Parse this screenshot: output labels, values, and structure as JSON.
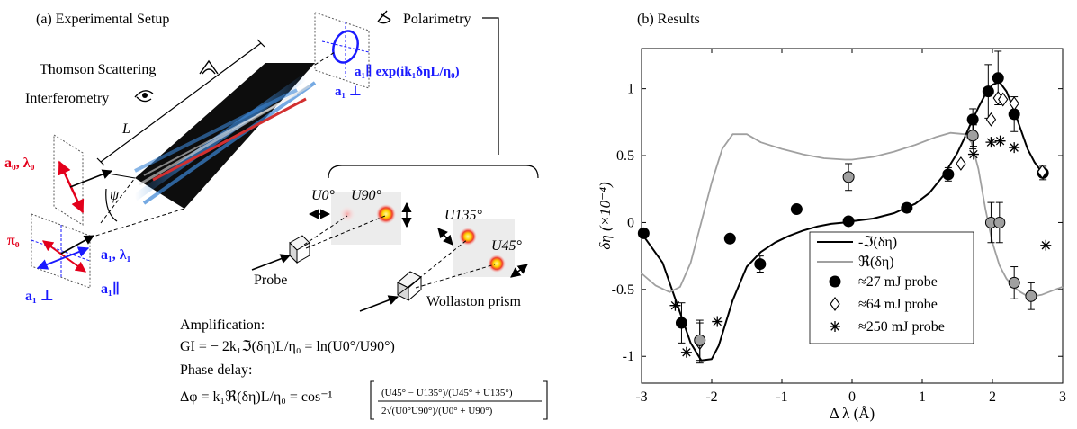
{
  "panel_a": {
    "caption": "(a) Experimental Setup",
    "thomson": "Thomson Scattering",
    "interferometry": "Interferometry",
    "polarimetry": "Polarimetry",
    "length_label": "L",
    "angle_label": "ψ",
    "pump_label": "a₀, λ₀",
    "pump_pol_label": "π₀",
    "seed_label": "a₁, λ₁",
    "seed_par_label": "a₁∥",
    "seed_perp_label": "a₁ ⊥",
    "out_par_label": "a₁∥ exp(ik₁δηL/η₀)",
    "out_perp_label": "a₁ ⊥",
    "u0": "U0°",
    "u90": "U90°",
    "u135": "U135°",
    "u45": "U45°",
    "probe": "Probe",
    "wollaston": "Wollaston prism",
    "amp_title": "Amplification:",
    "amp_eq": "GI = − 2k₁ℑ(δη)L/η₀ = ln(U0°/U90°)",
    "phase_title": "Phase delay:",
    "phase_eq_lhs": "Δφ = k₁ℜ(δη)L/η₀ = cos⁻¹",
    "phase_eq_num": "(U45° − U135°)/(U45° + U135°)",
    "phase_eq_den": "2√(U0°U90°)/(U0° + U90°)"
  },
  "chart_data": {
    "type": "line",
    "caption": "(b) Results",
    "xlabel": "Δ λ (Å)",
    "ylabel": "δη (×10⁻⁴)",
    "xlim": [
      -3,
      3
    ],
    "ylim": [
      -1.2,
      1.3
    ],
    "xticks": [
      -3,
      -2,
      -1,
      0,
      1,
      2,
      3
    ],
    "yticks": [
      -1,
      -0.5,
      0,
      0.5,
      1
    ],
    "legend_position": "center-right",
    "lines": [
      {
        "name": "-ℑ(δη)",
        "color": "#000000",
        "x": [
          -3.0,
          -2.7,
          -2.5,
          -2.3,
          -2.15,
          -2.0,
          -1.9,
          -1.7,
          -1.5,
          -1.3,
          -1.1,
          -0.9,
          -0.7,
          -0.5,
          -0.3,
          -0.1,
          0.0,
          0.3,
          0.6,
          0.9,
          1.1,
          1.3,
          1.5,
          1.6,
          1.7,
          1.8,
          1.9,
          2.0,
          2.1,
          2.2,
          2.3,
          2.4,
          2.5,
          2.6,
          2.7
        ],
        "y": [
          -0.08,
          -0.3,
          -0.6,
          -0.9,
          -1.03,
          -1.02,
          -0.92,
          -0.58,
          -0.33,
          -0.22,
          -0.15,
          -0.1,
          -0.06,
          -0.03,
          -0.01,
          0.0,
          0.01,
          0.03,
          0.07,
          0.14,
          0.22,
          0.35,
          0.52,
          0.63,
          0.75,
          0.86,
          0.96,
          1.03,
          1.05,
          0.98,
          0.85,
          0.7,
          0.55,
          0.45,
          0.38
        ]
      },
      {
        "name": "ℜ(δη)",
        "color": "#a0a0a0",
        "x": [
          -3.0,
          -2.8,
          -2.6,
          -2.45,
          -2.3,
          -2.15,
          -2.0,
          -1.85,
          -1.7,
          -1.5,
          -1.3,
          -1.0,
          -0.7,
          -0.4,
          -0.1,
          0.0,
          0.3,
          0.6,
          0.9,
          1.2,
          1.4,
          1.6,
          1.7,
          1.8,
          1.9,
          2.0,
          2.1,
          2.2,
          2.3,
          2.4,
          2.5,
          2.6,
          2.7,
          2.8,
          2.9,
          3.0
        ],
        "y": [
          -0.38,
          -0.47,
          -0.52,
          -0.48,
          -0.3,
          0.0,
          0.3,
          0.55,
          0.66,
          0.66,
          0.6,
          0.55,
          0.51,
          0.48,
          0.47,
          0.47,
          0.49,
          0.53,
          0.58,
          0.64,
          0.67,
          0.66,
          0.6,
          0.4,
          0.1,
          -0.15,
          -0.32,
          -0.42,
          -0.48,
          -0.52,
          -0.55,
          -0.55,
          -0.54,
          -0.52,
          -0.5,
          -0.48
        ]
      }
    ],
    "points": [
      {
        "name": "≈27 mJ probe",
        "marker": "circle",
        "fill": "#000000",
        "x": [
          -2.97,
          -2.43,
          -1.74,
          -1.31,
          -0.79,
          -0.05,
          0.78,
          1.37,
          1.72,
          1.94,
          2.08,
          2.31,
          2.72
        ],
        "y": [
          -0.08,
          -0.75,
          -0.12,
          -0.31,
          0.1,
          0.01,
          0.11,
          0.36,
          0.77,
          0.98,
          1.08,
          0.81,
          0.37
        ],
        "err": [
          0.0,
          0.15,
          0.0,
          0.06,
          0.0,
          0.0,
          0.0,
          0.05,
          0.08,
          0.2,
          0.2,
          0.13,
          0.05
        ]
      },
      {
        "name": "≈64 mJ probe",
        "marker": "diamond",
        "fill": "#ffffff",
        "x": [
          -2.17,
          1.55,
          1.73,
          1.98,
          2.08,
          2.15,
          2.31,
          2.71
        ],
        "y": [
          -0.9,
          0.44,
          0.65,
          0.77,
          0.93,
          0.92,
          0.89,
          0.38
        ],
        "err": [
          0.15,
          0.0,
          0.08,
          0.0,
          0.0,
          0.0,
          0.0,
          0.0
        ]
      },
      {
        "name": "≈250 mJ probe",
        "marker": "star",
        "fill": "#000000",
        "x": [
          -2.52,
          -2.36,
          -1.92,
          1.73,
          1.98,
          2.11,
          2.31,
          2.76
        ],
        "y": [
          -0.62,
          -0.97,
          -0.74,
          0.51,
          0.6,
          0.61,
          0.56,
          -0.17
        ]
      },
      {
        "name": "",
        "marker": "circle",
        "fill": "#a0a0a0",
        "x": [
          -2.17,
          -0.05,
          1.72,
          1.98,
          2.1,
          2.31,
          2.55
        ],
        "y": [
          -0.88,
          0.34,
          0.65,
          0.0,
          0.0,
          -0.45,
          -0.55
        ],
        "err": [
          0.15,
          0.1,
          0.1,
          0.15,
          0.15,
          0.12,
          0.1
        ]
      }
    ]
  }
}
